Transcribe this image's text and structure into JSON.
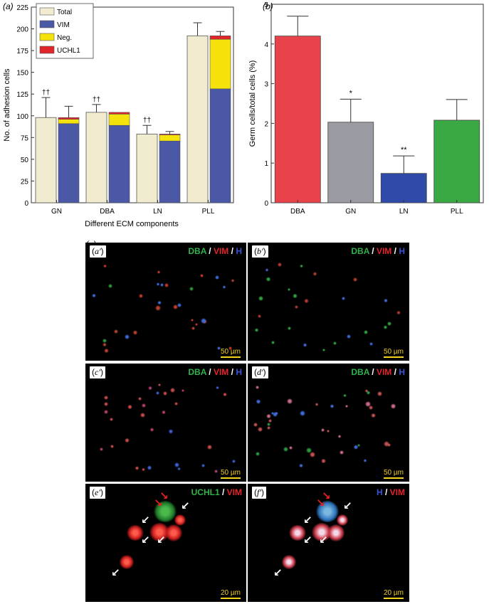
{
  "chart_data": [
    {
      "panel_label": "(a)",
      "type": "bar",
      "ylabel": "No. of adhesion cells",
      "xlabel": "Different ECM components",
      "ylim": [
        0,
        225
      ],
      "yticks": [
        0,
        25,
        50,
        75,
        100,
        125,
        150,
        175,
        200,
        225
      ],
      "categories": [
        "GN",
        "DBA",
        "LN",
        "PLL"
      ],
      "legend": [
        "Total",
        "VIM",
        "Neg.",
        "UCHL1"
      ],
      "legend_position": "top-left",
      "colors": {
        "Total": "#f1ecd0",
        "VIM": "#4a58a6",
        "Neg.": "#f5e20a",
        "UCHL1": "#e0262a"
      },
      "series": [
        {
          "name": "Total",
          "values": [
            98,
            104,
            79,
            192
          ],
          "error": [
            23,
            9,
            10,
            15
          ]
        },
        {
          "name": "VIM",
          "values": [
            91,
            89,
            71,
            131
          ],
          "stacked": true
        },
        {
          "name": "Neg.",
          "values": [
            5,
            13,
            7,
            57
          ],
          "stacked": true
        },
        {
          "name": "UCHL1",
          "values": [
            2,
            2,
            1,
            4
          ],
          "stacked": true
        }
      ],
      "stack_error": [
        13,
        0,
        3,
        5
      ],
      "annotations": [
        "††",
        "††",
        "††",
        ""
      ]
    },
    {
      "panel_label": "(b)",
      "type": "bar",
      "ylabel": "Germ cells/total cells (%)",
      "ylim": [
        0,
        5
      ],
      "yticks": [
        0,
        1,
        2,
        3,
        4,
        5
      ],
      "categories": [
        "DBA",
        "GN",
        "LN",
        "PLL"
      ],
      "values": [
        4.2,
        2.03,
        0.74,
        2.08
      ],
      "error": [
        0.5,
        0.58,
        0.44,
        0.52
      ],
      "colors": [
        "#e8434b",
        "#9a9aa2",
        "#2f4aa8",
        "#3aa843"
      ],
      "annotations": [
        "",
        "*",
        "**",
        ""
      ]
    }
  ],
  "micrographs": {
    "panel_label": "(c)",
    "panels": [
      {
        "label": "a′",
        "stain": [
          [
            "DBA",
            "g"
          ],
          [
            " / ",
            "w"
          ],
          [
            "VIM",
            "r"
          ],
          [
            " / ",
            "w"
          ],
          [
            "H",
            "b"
          ]
        ],
        "scale": "50 µm"
      },
      {
        "label": "b′",
        "stain": [
          [
            "DBA",
            "g"
          ],
          [
            " / ",
            "w"
          ],
          [
            "VIM",
            "r"
          ],
          [
            " / ",
            "w"
          ],
          [
            "H",
            "b"
          ]
        ],
        "scale": "50 µm"
      },
      {
        "label": "c′",
        "stain": [
          [
            "DBA",
            "g"
          ],
          [
            " / ",
            "w"
          ],
          [
            "VIM",
            "r"
          ],
          [
            " / ",
            "w"
          ],
          [
            "H",
            "b"
          ]
        ],
        "scale": "50 µm"
      },
      {
        "label": "d′",
        "stain": [
          [
            "DBA",
            "g"
          ],
          [
            " / ",
            "w"
          ],
          [
            "VIM",
            "r"
          ],
          [
            " / ",
            "w"
          ],
          [
            "H",
            "b"
          ]
        ],
        "scale": "50 µm"
      },
      {
        "label": "e′",
        "stain": [
          [
            "UCHL1",
            "g"
          ],
          [
            " / ",
            "w"
          ],
          [
            "VIM",
            "r"
          ]
        ],
        "scale": "20 µm"
      },
      {
        "label": "f′",
        "stain": [
          [
            "H",
            "b"
          ],
          [
            " / ",
            "w"
          ],
          [
            "VIM",
            "r"
          ]
        ],
        "scale": "20 µm"
      }
    ]
  }
}
